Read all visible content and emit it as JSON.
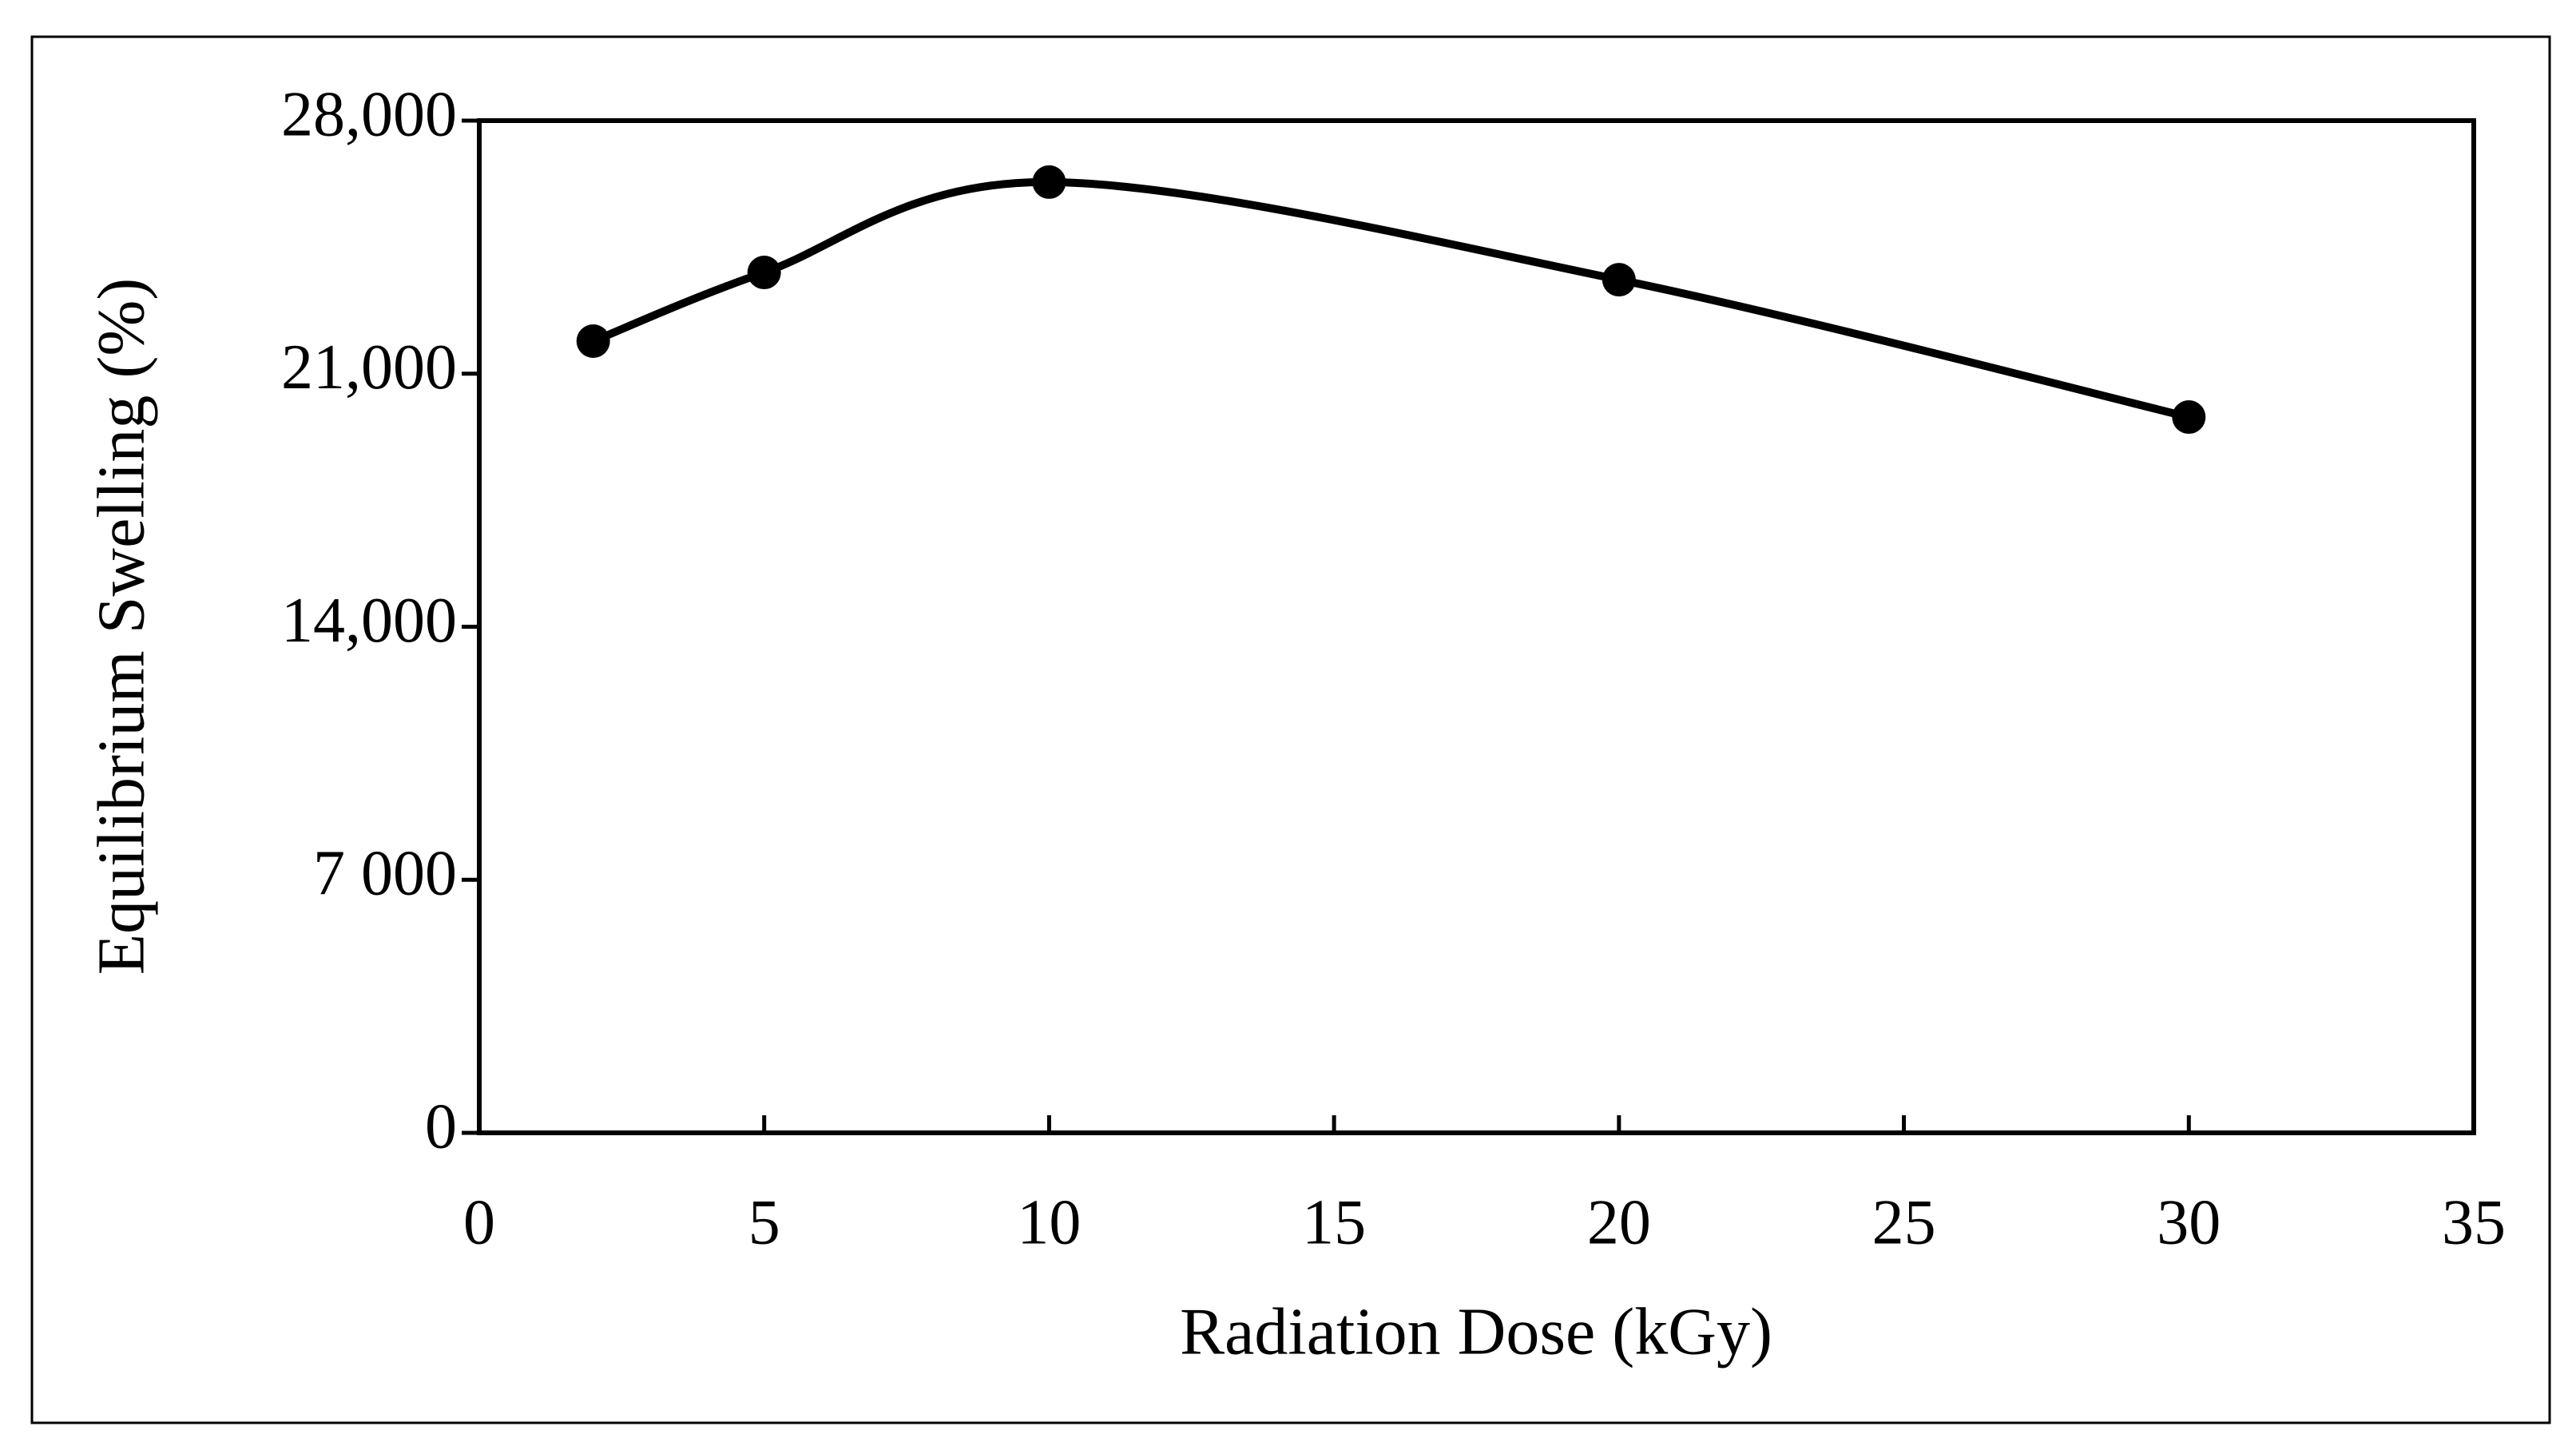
{
  "chart_data": {
    "type": "line",
    "x": [
      2,
      5,
      10,
      20,
      30
    ],
    "values": [
      21900,
      23800,
      26300,
      23600,
      19800
    ],
    "color": "#000000",
    "smooth": true,
    "markers": true,
    "xlabel": "Radiation Dose (kGy)",
    "ylabel": "Equilibrium Swelling (%)",
    "xlim": [
      0,
      35
    ],
    "ylim": [
      0,
      28000
    ],
    "xticks": [
      0,
      5,
      10,
      15,
      20,
      25,
      30,
      35
    ],
    "yticks": [
      0,
      {
        "value": 7000,
        "label": "7 000"
      },
      {
        "value": 14000,
        "label": "14,000"
      },
      {
        "value": 21000,
        "label": "21,000"
      },
      {
        "value": 28000,
        "label": "28,000"
      }
    ]
  }
}
